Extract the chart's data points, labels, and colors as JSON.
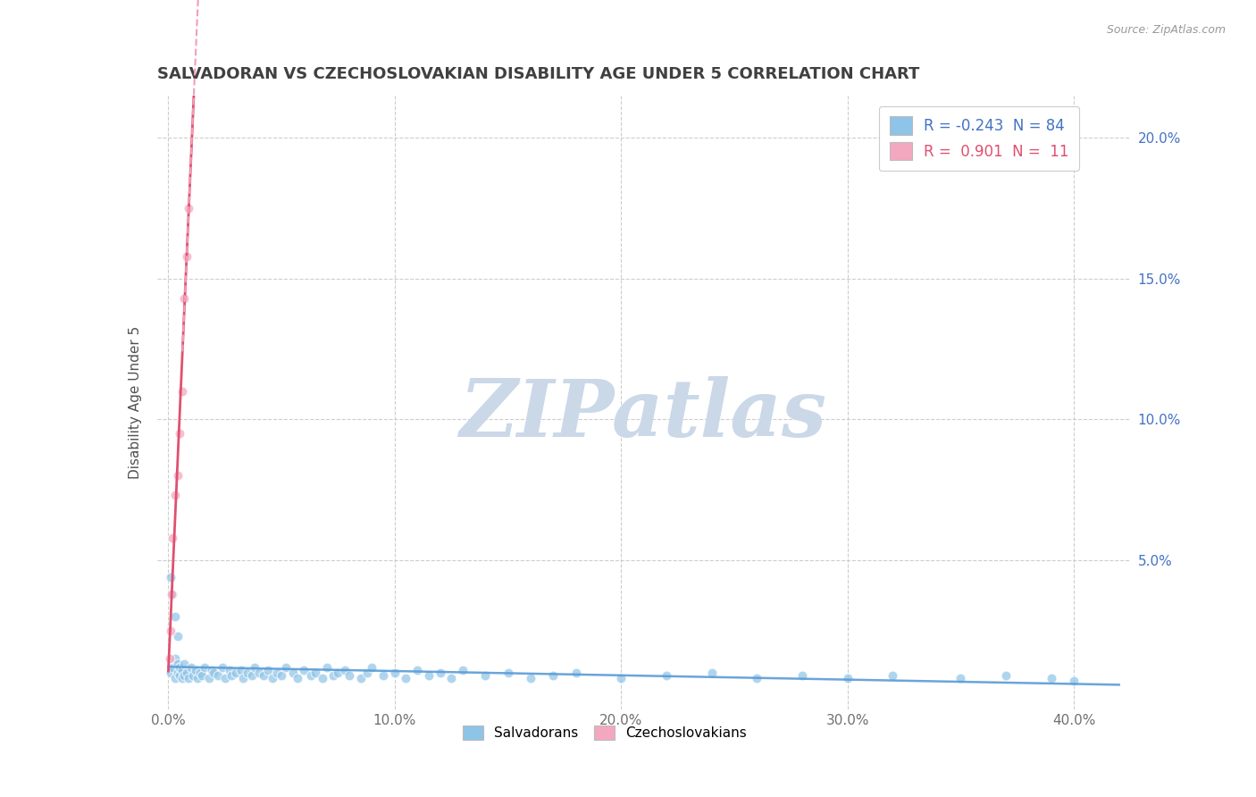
{
  "title": "SALVADORAN VS CZECHOSLOVAKIAN DISABILITY AGE UNDER 5 CORRELATION CHART",
  "source": "Source: ZipAtlas.com",
  "ylabel": "Disability Age Under 5",
  "xlim": [
    -0.005,
    0.425
  ],
  "ylim": [
    -0.003,
    0.215
  ],
  "xtick_vals": [
    0.0,
    0.1,
    0.2,
    0.3,
    0.4
  ],
  "xtick_labels": [
    "0.0%",
    "10.0%",
    "20.0%",
    "30.0%",
    "40.0%"
  ],
  "ytick_vals": [
    0.05,
    0.1,
    0.15,
    0.2
  ],
  "ytick_labels": [
    "5.0%",
    "10.0%",
    "15.0%",
    "20.0%"
  ],
  "salvadoran_R": -0.243,
  "salvadoran_N": 84,
  "czechoslovakian_R": 0.901,
  "czechoslovakian_N": 11,
  "blue_scatter_color": "#8ec4e8",
  "pink_scatter_color": "#f4a8c0",
  "trend_blue_color": "#5b9bd5",
  "trend_pink_color": "#e05070",
  "trend_pink_dashed_color": "#f0a0b8",
  "watermark_color": "#cad8e8",
  "background_color": "#ffffff",
  "grid_color": "#c8c8c8",
  "title_color": "#404040",
  "axis_label_color": "#505050",
  "right_axis_color": "#4472c4",
  "czech_x": [
    0.0005,
    0.001,
    0.0015,
    0.002,
    0.003,
    0.004,
    0.005,
    0.006,
    0.007,
    0.008,
    0.009
  ],
  "czech_y": [
    0.015,
    0.025,
    0.038,
    0.058,
    0.073,
    0.08,
    0.095,
    0.11,
    0.143,
    0.158,
    0.175
  ],
  "salv_x": [
    0.001,
    0.002,
    0.003,
    0.003,
    0.004,
    0.004,
    0.005,
    0.005,
    0.006,
    0.006,
    0.007,
    0.007,
    0.008,
    0.009,
    0.01,
    0.011,
    0.012,
    0.013,
    0.014,
    0.015,
    0.016,
    0.018,
    0.019,
    0.02,
    0.022,
    0.024,
    0.025,
    0.027,
    0.028,
    0.03,
    0.032,
    0.033,
    0.035,
    0.037,
    0.038,
    0.04,
    0.042,
    0.044,
    0.046,
    0.048,
    0.05,
    0.052,
    0.055,
    0.057,
    0.06,
    0.063,
    0.065,
    0.068,
    0.07,
    0.073,
    0.075,
    0.078,
    0.08,
    0.085,
    0.088,
    0.09,
    0.095,
    0.1,
    0.105,
    0.11,
    0.115,
    0.12,
    0.125,
    0.13,
    0.14,
    0.15,
    0.16,
    0.17,
    0.18,
    0.2,
    0.22,
    0.24,
    0.26,
    0.28,
    0.3,
    0.32,
    0.35,
    0.37,
    0.39,
    0.4,
    0.001,
    0.002,
    0.003,
    0.004
  ],
  "salv_y": [
    0.01,
    0.012,
    0.008,
    0.015,
    0.01,
    0.013,
    0.009,
    0.012,
    0.008,
    0.011,
    0.009,
    0.013,
    0.01,
    0.008,
    0.012,
    0.009,
    0.011,
    0.008,
    0.01,
    0.009,
    0.012,
    0.008,
    0.011,
    0.01,
    0.009,
    0.012,
    0.008,
    0.011,
    0.009,
    0.01,
    0.011,
    0.008,
    0.01,
    0.009,
    0.012,
    0.01,
    0.009,
    0.011,
    0.008,
    0.01,
    0.009,
    0.012,
    0.01,
    0.008,
    0.011,
    0.009,
    0.01,
    0.008,
    0.012,
    0.009,
    0.01,
    0.011,
    0.009,
    0.008,
    0.01,
    0.012,
    0.009,
    0.01,
    0.008,
    0.011,
    0.009,
    0.01,
    0.008,
    0.011,
    0.009,
    0.01,
    0.008,
    0.009,
    0.01,
    0.008,
    0.009,
    0.01,
    0.008,
    0.009,
    0.008,
    0.009,
    0.008,
    0.009,
    0.008,
    0.007,
    0.044,
    0.038,
    0.03,
    0.023
  ]
}
